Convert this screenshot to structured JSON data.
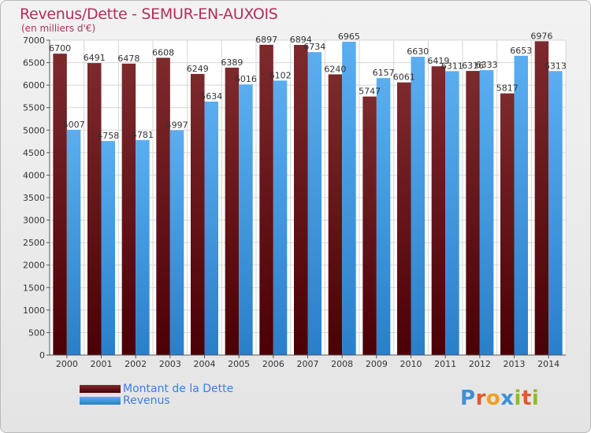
{
  "title": "Revenus/Dette - SEMUR-EN-AUXOIS",
  "subtitle": "(en milliers d'€)",
  "logo": "Proxiti",
  "colors": {
    "debt": "#6b1115",
    "revenue": "#4a9be0",
    "title": "#b0305a",
    "legend_text": "#3f7fe0",
    "grid": "#d5d5d5"
  },
  "chart_data": {
    "type": "bar",
    "categories": [
      "2000",
      "2001",
      "2002",
      "2003",
      "2004",
      "2005",
      "2006",
      "2007",
      "2008",
      "2009",
      "2010",
      "2011",
      "2012",
      "2013",
      "2014"
    ],
    "series": [
      {
        "name": "Montant de la Dette",
        "values": [
          6700,
          6491,
          6478,
          6608,
          6249,
          6389,
          6897,
          6894,
          6240,
          5747,
          6061,
          6419,
          6316,
          5817,
          6976
        ]
      },
      {
        "name": "Revenus",
        "values": [
          5007,
          4758,
          4781,
          4997,
          5634,
          6016,
          6102,
          6734,
          6965,
          6157,
          6630,
          6311,
          6333,
          6653,
          6313
        ]
      }
    ],
    "ylim": [
      0,
      7000
    ],
    "yticks": [
      0,
      500,
      1000,
      1500,
      2000,
      2500,
      3000,
      3500,
      4000,
      4500,
      5000,
      5500,
      6000,
      6500,
      7000
    ],
    "grid": true,
    "legend_position": "bottom-left"
  }
}
